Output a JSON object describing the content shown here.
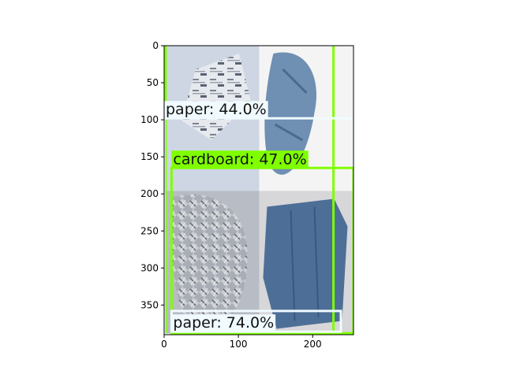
{
  "colors": {
    "background": "#ffffff",
    "paper_box": "#f0faff",
    "cardboard_box": "#7fff00",
    "axis": "#000000"
  },
  "axes": {
    "x_ticks": [
      "0",
      "100",
      "200"
    ],
    "y_ticks": [
      "0",
      "50",
      "100",
      "150",
      "200",
      "250",
      "300",
      "350"
    ],
    "xlim": [
      0,
      255
    ],
    "ylim": [
      390,
      0
    ]
  },
  "image_tiles": [
    {
      "name": "newspaper-photo",
      "x0": 0,
      "y0": 0,
      "x1": 128,
      "y1": 196,
      "bg": "#cdd6e2"
    },
    {
      "name": "blue-paper-photo",
      "x0": 128,
      "y0": 0,
      "x1": 255,
      "y1": 196,
      "bg": "#f4f4f4"
    },
    {
      "name": "aluminium-foil-photo",
      "x0": 0,
      "y0": 196,
      "x1": 128,
      "y1": 390,
      "bg": "#b8bcc4"
    },
    {
      "name": "blue-cardboard-photo",
      "x0": 128,
      "y0": 196,
      "x1": 255,
      "y1": 390,
      "bg": "#d7d6d9"
    }
  ],
  "detections": [
    {
      "label": "paper: 44.0%",
      "color": "#f0faff",
      "x0": 0,
      "y0": 98,
      "x1": 255,
      "y1": 390
    },
    {
      "label": "cardboard: 47.0%",
      "color": "#7fff00",
      "x0": 10,
      "y0": 165,
      "x1": 255,
      "y1": 388
    },
    {
      "label": "paper: 74.0%",
      "color": "#f0faff",
      "x0": 10,
      "y0": 386,
      "x1": 238,
      "y1": 358
    }
  ],
  "extra_lines": [
    {
      "color": "#7fff00",
      "x0": 2,
      "y0": 0,
      "x1": 2,
      "y1": 390
    },
    {
      "color": "#7fff00",
      "x0": 228,
      "y0": 0,
      "x1": 228,
      "y1": 390
    }
  ]
}
